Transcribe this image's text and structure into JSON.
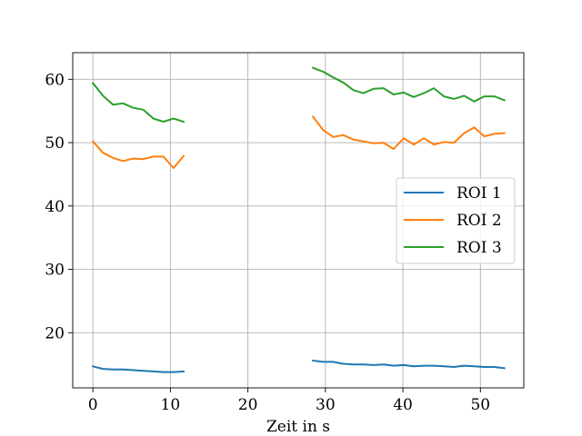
{
  "chart_data": {
    "type": "line",
    "title": "",
    "xlabel": "Zeit in s",
    "ylabel": "",
    "xlim": [
      -2.6,
      55.6
    ],
    "ylim": [
      11.3,
      64.2
    ],
    "xticks": [
      0,
      10,
      20,
      30,
      40,
      50
    ],
    "yticks": [
      20,
      30,
      40,
      50,
      60
    ],
    "grid": true,
    "legend_position": "center-right",
    "series": [
      {
        "name": "ROI 1",
        "color": "#1f77b4",
        "segments": [
          {
            "x": [
              0,
              1.3,
              2.6,
              3.9,
              5.2,
              6.5,
              7.8,
              9.1,
              10.4,
              11.7
            ],
            "y": [
              14.7,
              14.3,
              14.2,
              14.2,
              14.1,
              14.0,
              13.9,
              13.8,
              13.8,
              13.9
            ]
          },
          {
            "x": [
              28.4,
              29.7,
              31.0,
              32.3,
              33.6,
              34.9,
              36.2,
              37.5,
              38.8,
              40.1,
              41.4,
              42.7,
              44.0,
              45.3,
              46.6,
              47.9,
              49.2,
              50.5,
              51.8,
              53.1
            ],
            "y": [
              15.6,
              15.4,
              15.4,
              15.1,
              15.0,
              15.0,
              14.9,
              15.0,
              14.8,
              14.9,
              14.7,
              14.8,
              14.8,
              14.7,
              14.6,
              14.8,
              14.7,
              14.6,
              14.6,
              14.4
            ]
          }
        ]
      },
      {
        "name": "ROI 2",
        "color": "#ff7f0e",
        "segments": [
          {
            "x": [
              0,
              1.3,
              2.6,
              3.9,
              5.2,
              6.5,
              7.8,
              9.1,
              10.4,
              11.7
            ],
            "y": [
              50.2,
              48.4,
              47.6,
              47.1,
              47.5,
              47.4,
              47.8,
              47.8,
              46.0,
              47.9
            ]
          },
          {
            "x": [
              28.4,
              29.7,
              31.0,
              32.3,
              33.6,
              34.9,
              36.2,
              37.5,
              38.8,
              40.1,
              41.4,
              42.7,
              44.0,
              45.3,
              46.6,
              47.9,
              49.2,
              50.5,
              51.8,
              53.1
            ],
            "y": [
              54.1,
              52.0,
              50.9,
              51.2,
              50.5,
              50.2,
              49.9,
              50.0,
              49.0,
              50.7,
              49.7,
              50.7,
              49.7,
              50.1,
              50.0,
              51.5,
              52.4,
              51.0,
              51.4,
              51.5
            ]
          }
        ]
      },
      {
        "name": "ROI 3",
        "color": "#2ca02c",
        "segments": [
          {
            "x": [
              0,
              1.3,
              2.6,
              3.9,
              5.2,
              6.5,
              7.8,
              9.1,
              10.4,
              11.7
            ],
            "y": [
              59.4,
              57.4,
              56.0,
              56.2,
              55.5,
              55.2,
              53.8,
              53.3,
              53.8,
              53.3
            ]
          },
          {
            "x": [
              28.4,
              29.7,
              31.0,
              32.3,
              33.6,
              34.9,
              36.2,
              37.5,
              38.8,
              40.1,
              41.4,
              42.7,
              44.0,
              45.3,
              46.6,
              47.9,
              49.2,
              50.5,
              51.8,
              53.1
            ],
            "y": [
              61.8,
              61.2,
              60.3,
              59.5,
              58.3,
              57.8,
              58.5,
              58.6,
              57.6,
              57.9,
              57.2,
              57.8,
              58.6,
              57.3,
              56.9,
              57.4,
              56.5,
              57.3,
              57.3,
              56.7
            ]
          }
        ]
      }
    ]
  }
}
